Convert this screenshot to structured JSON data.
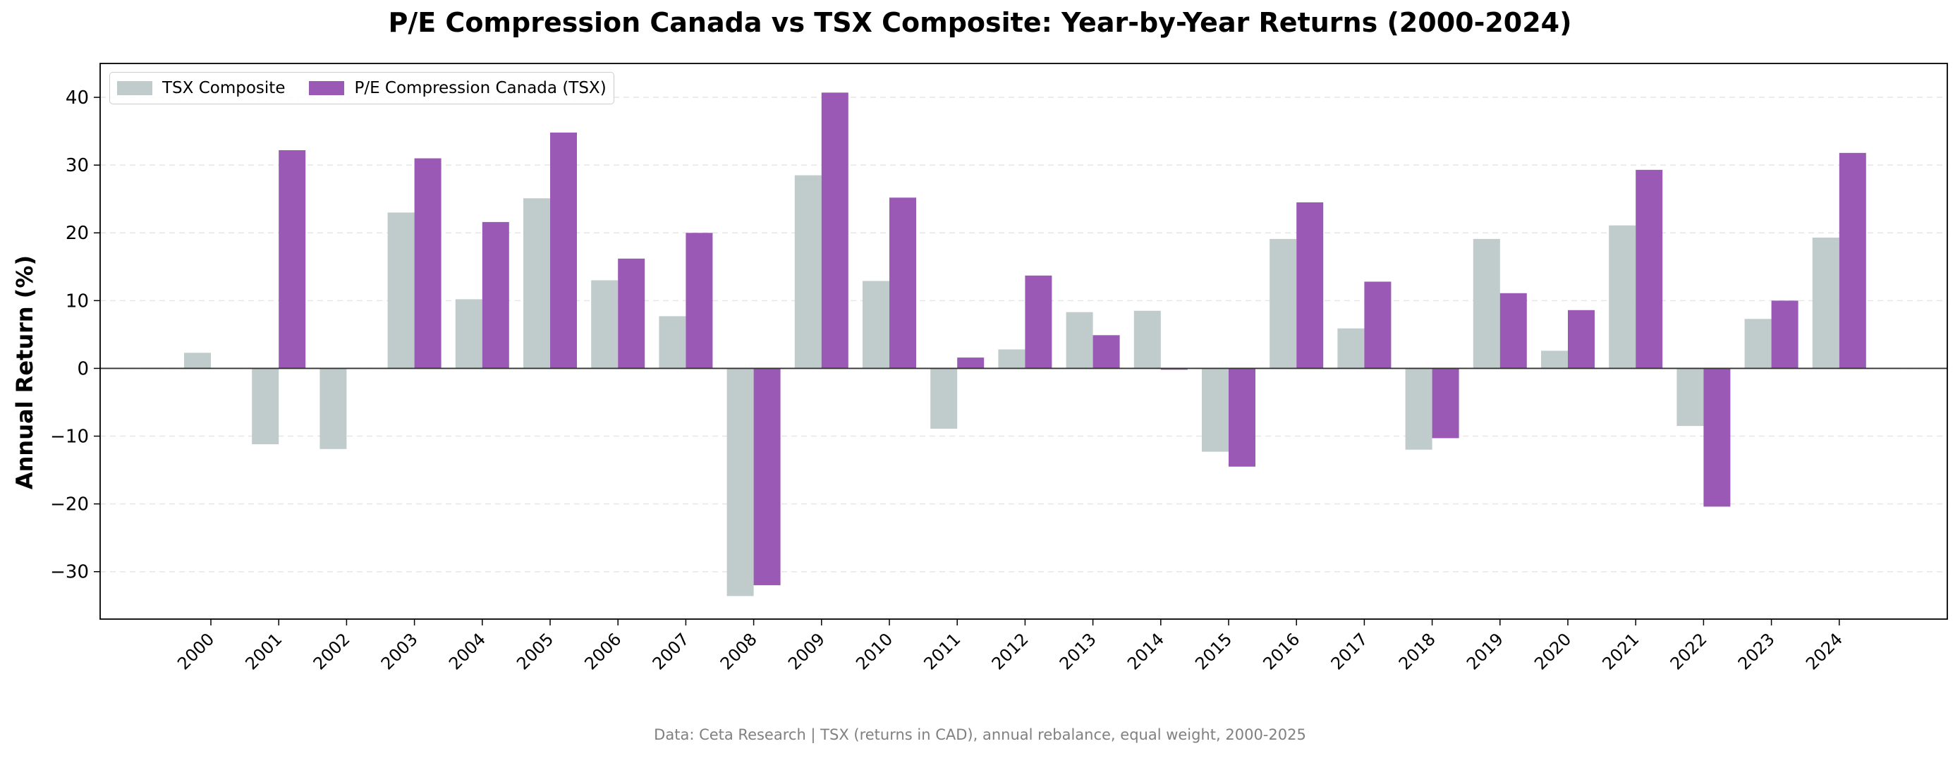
{
  "chart_data": {
    "type": "bar",
    "title": "P/E Compression Canada vs TSX Composite: Year-by-Year Returns (2000-2024)",
    "ylabel": "Annual Return (%)",
    "xlabel": "",
    "ylim": [
      -37,
      45
    ],
    "yticks": [
      -30,
      -20,
      -10,
      0,
      10,
      20,
      30,
      40
    ],
    "ytick_labels": [
      "−30",
      "−20",
      "−10",
      "0",
      "10",
      "20",
      "30",
      "40"
    ],
    "grid": "y-dashed",
    "legend_position": "top-left",
    "categories": [
      "2000",
      "2001",
      "2002",
      "2003",
      "2004",
      "2005",
      "2006",
      "2007",
      "2008",
      "2009",
      "2010",
      "2011",
      "2012",
      "2013",
      "2014",
      "2015",
      "2016",
      "2017",
      "2018",
      "2019",
      "2020",
      "2021",
      "2022",
      "2023",
      "2024"
    ],
    "series": [
      {
        "name": "TSX Composite",
        "color": "#c0cbcb",
        "values": [
          2.3,
          -11.2,
          -11.9,
          23.0,
          10.2,
          25.1,
          13.0,
          7.7,
          -33.6,
          28.5,
          12.9,
          -8.9,
          2.8,
          8.3,
          8.5,
          -12.3,
          19.1,
          5.9,
          -12.0,
          19.1,
          2.6,
          21.1,
          -8.5,
          7.3,
          19.3
        ]
      },
      {
        "name": "P/E Compression Canada (TSX)",
        "color": "#9b59b6",
        "values": [
          0.0,
          32.2,
          0.1,
          31.0,
          21.6,
          34.8,
          16.2,
          20.0,
          -32.0,
          40.7,
          25.2,
          1.6,
          13.7,
          4.9,
          -0.2,
          -14.5,
          24.5,
          12.8,
          -10.3,
          11.1,
          8.6,
          29.3,
          -20.4,
          10.0,
          31.8
        ]
      }
    ]
  },
  "footer_note": "Data: Ceta Research | TSX (returns in CAD), annual rebalance, equal weight, 2000-2025"
}
